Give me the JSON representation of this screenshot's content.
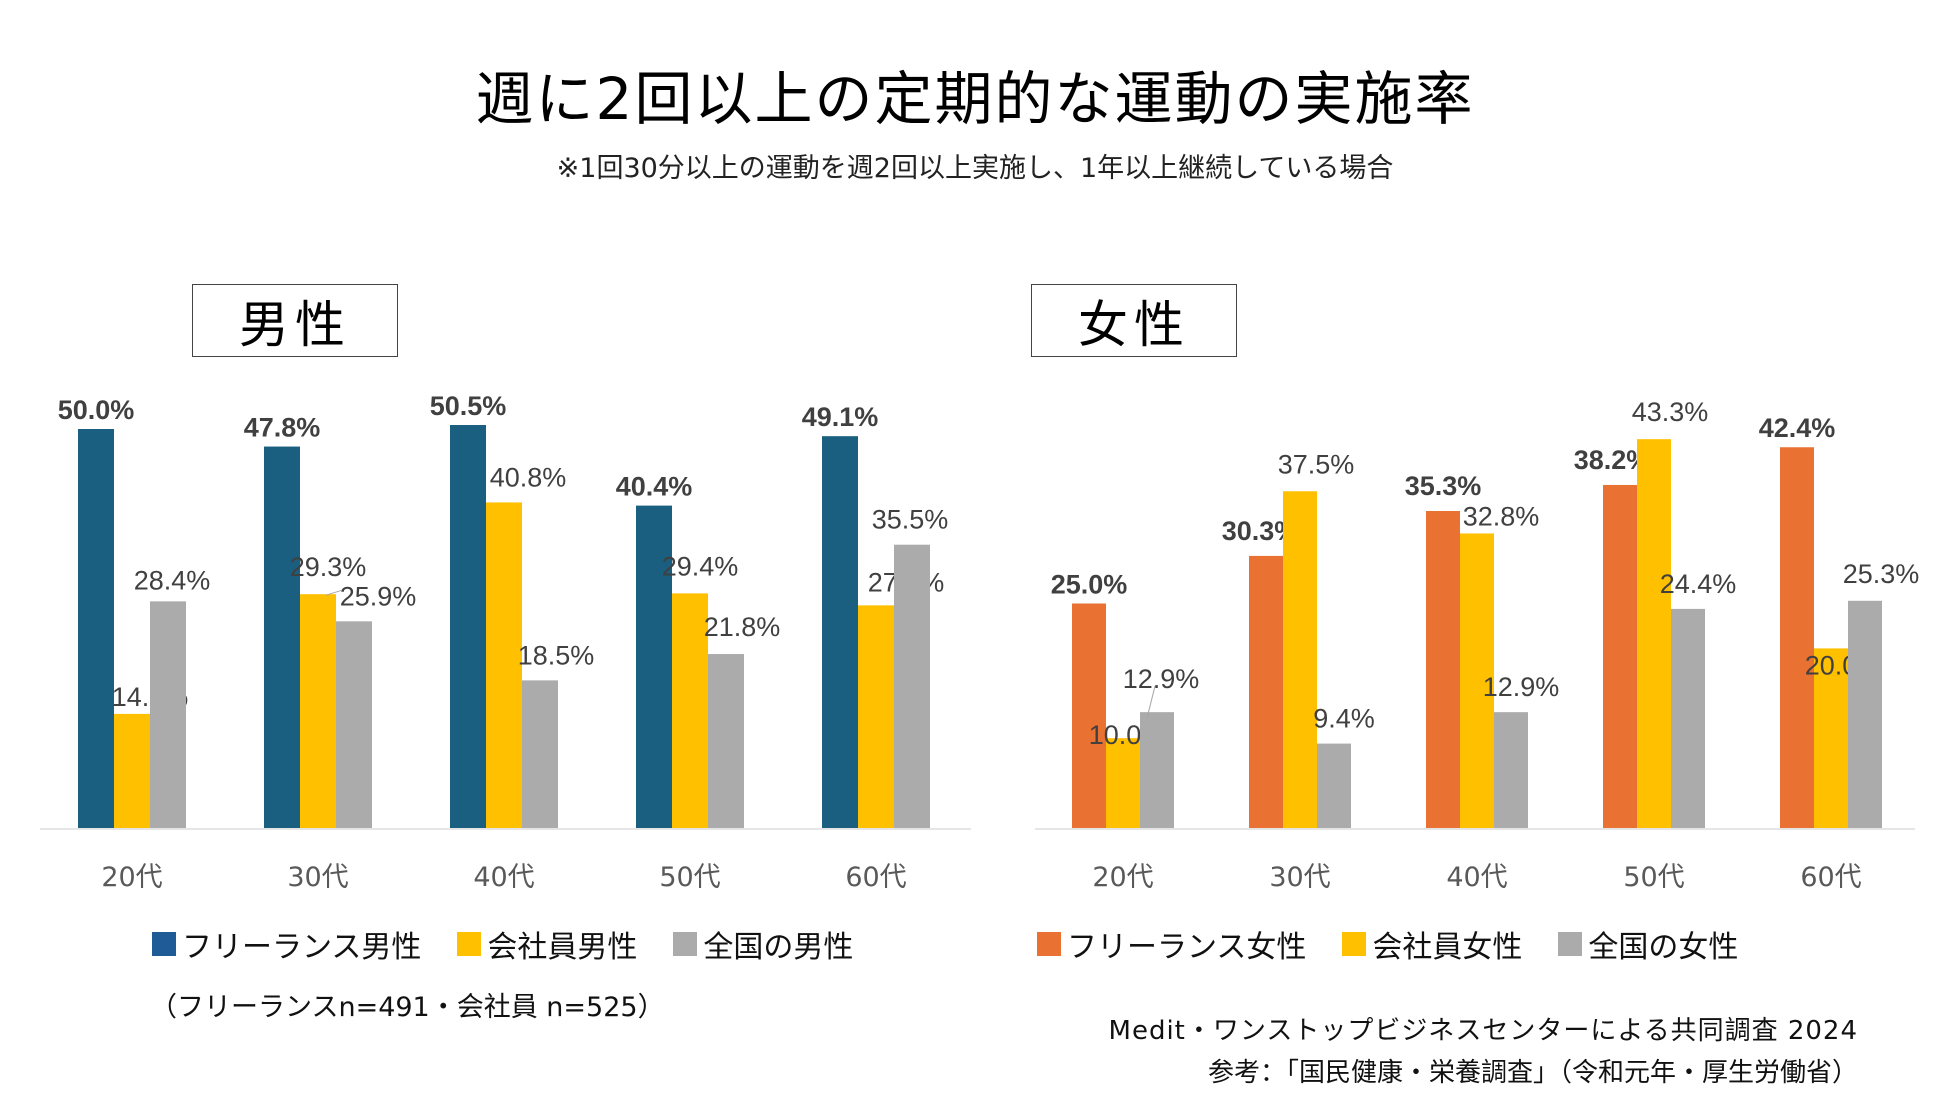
{
  "title": "週に2回以上の定期的な運動の実施率",
  "subtitle": "※1回30分以上の運動を週2回以上実施し、1年以上継続している場合",
  "colors": {
    "freelance_male": "#1A5E80",
    "freelance_male_legend": "#1F5B96",
    "freelance_female": "#E97132",
    "employee": "#FFC000",
    "national": "#ABABAB",
    "axis": "#E6E6E6",
    "label": "#404040"
  },
  "chart_data": [
    {
      "type": "bar",
      "title": "男性",
      "categories": [
        "20代",
        "30代",
        "40代",
        "50代",
        "60代"
      ],
      "series": [
        {
          "name": "フリーランス男性",
          "values": [
            50.0,
            47.8,
            50.5,
            40.4,
            49.1
          ],
          "labels": [
            "50.0%",
            "47.8%",
            "50.5%",
            "40.4%",
            "49.1%"
          ],
          "bold_labels": true
        },
        {
          "name": "会社員男性",
          "values": [
            14.3,
            29.3,
            40.8,
            29.4,
            27.9
          ],
          "labels": [
            "14.3%",
            "29.3%",
            "40.8%",
            "29.4%",
            "27.9%"
          ],
          "bold_labels": false
        },
        {
          "name": "全国の男性",
          "values": [
            28.4,
            25.9,
            18.5,
            21.8,
            35.5
          ],
          "labels": [
            "28.4%",
            "25.9%",
            "18.5%",
            "21.8%",
            "35.5%"
          ],
          "bold_labels": false
        }
      ],
      "xlabel": "",
      "ylabel": "",
      "ylim": [
        0,
        52
      ],
      "grid": false,
      "legend": "bottom"
    },
    {
      "type": "bar",
      "title": "女性",
      "categories": [
        "20代",
        "30代",
        "40代",
        "50代",
        "60代"
      ],
      "series": [
        {
          "name": "フリーランス女性",
          "values": [
            25.0,
            30.3,
            35.3,
            38.2,
            42.4
          ],
          "labels": [
            "25.0%",
            "30.3%",
            "35.3%",
            "38.2%",
            "42.4%"
          ],
          "bold_labels": true
        },
        {
          "name": "会社員女性",
          "values": [
            10.0,
            37.5,
            32.8,
            43.3,
            20.0
          ],
          "labels": [
            "10.0%",
            "37.5%",
            "32.8%",
            "43.3%",
            "20.0%"
          ],
          "bold_labels": false
        },
        {
          "name": "全国の女性",
          "values": [
            12.9,
            9.4,
            12.9,
            24.4,
            25.3
          ],
          "labels": [
            "12.9%",
            "9.4%",
            "12.9%",
            "24.4%",
            "25.3%"
          ],
          "bold_labels": false
        }
      ],
      "xlabel": "",
      "ylabel": "",
      "ylim": [
        0,
        46
      ],
      "grid": false,
      "legend": "bottom"
    }
  ],
  "legends": {
    "male": [
      "フリーランス男性",
      "会社員男性",
      "全国の男性"
    ],
    "female": [
      "フリーランス女性",
      "会社員女性",
      "全国の女性"
    ]
  },
  "sample_note": "（フリーランスn=491・会社員 n=525）",
  "credits": [
    "Medit・ワンストップビジネスセンターによる共同調査 2024",
    "参考：「国民健康・栄養調査」（令和元年・厚生労働省）"
  ]
}
